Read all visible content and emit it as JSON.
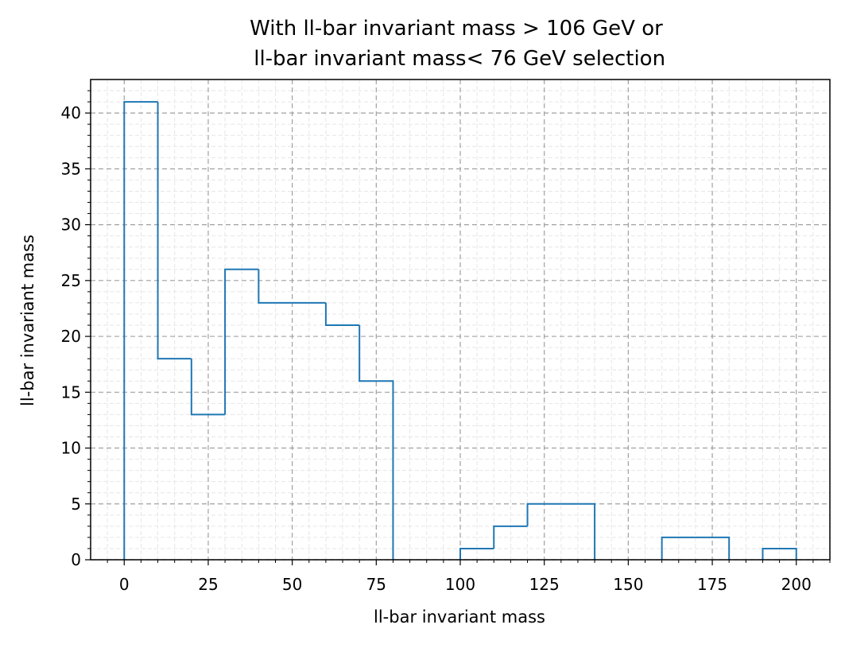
{
  "chart_data": {
    "type": "histogram",
    "title_lines": [
      "With ll-bar invariant mass > 106 GeV or",
      " ll-bar invariant mass< 76 GeV selection"
    ],
    "xlabel": "ll-bar invariant mass",
    "ylabel": "ll-bar invariant mass",
    "xlim": [
      -10,
      210
    ],
    "ylim": [
      0,
      43
    ],
    "x_ticks": [
      0,
      25,
      50,
      75,
      100,
      125,
      150,
      175,
      200
    ],
    "y_ticks": [
      0,
      5,
      10,
      15,
      20,
      25,
      30,
      35,
      40
    ],
    "bin_edges": [
      0,
      10,
      20,
      30,
      40,
      50,
      60,
      70,
      80,
      90,
      100,
      110,
      120,
      130,
      140,
      150,
      160,
      170,
      180,
      190,
      200
    ],
    "counts": [
      41,
      18,
      13,
      26,
      23,
      23,
      21,
      16,
      0,
      0,
      1,
      3,
      5,
      5,
      0,
      0,
      2,
      2,
      0,
      1
    ],
    "histtype": "step",
    "line_color": "#1f77b4",
    "grid": true,
    "major_grid_color": "#a0a0a0",
    "minor_grid_color": "#e6e6e6"
  }
}
